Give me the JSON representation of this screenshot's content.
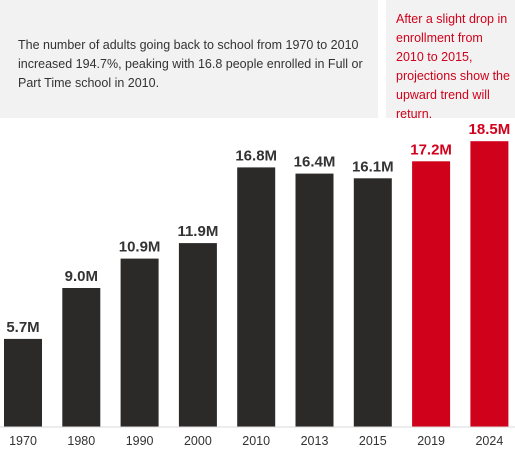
{
  "annotations": {
    "left": "The number of adults going back to school from 1970 to 2010 increased 194.7%, peaking with 16.8 people enrolled in Full or Part Time school in 2010.",
    "right": "After a slight drop in enrollment from 2010 to 2015, projections show the upward trend will return."
  },
  "colors": {
    "actual": "#2b2a29",
    "projected": "#d0021b",
    "note_background": "#f2f2f2"
  },
  "chart_data": {
    "type": "bar",
    "title": "",
    "xlabel": "",
    "ylabel": "",
    "ylim": [
      0,
      20
    ],
    "grid": false,
    "categories": [
      "1970",
      "1980",
      "1990",
      "2000",
      "2010",
      "2013",
      "2015",
      "2019",
      "2024"
    ],
    "values": [
      5.7,
      9.0,
      10.9,
      11.9,
      16.8,
      16.4,
      16.1,
      17.2,
      18.5
    ],
    "data_labels": [
      "5.7M",
      "9.0M",
      "10.9M",
      "11.9M",
      "16.8M",
      "16.4M",
      "16.1M",
      "17.2M",
      "18.5M"
    ],
    "projected": [
      false,
      false,
      false,
      false,
      false,
      false,
      false,
      true,
      true
    ]
  }
}
